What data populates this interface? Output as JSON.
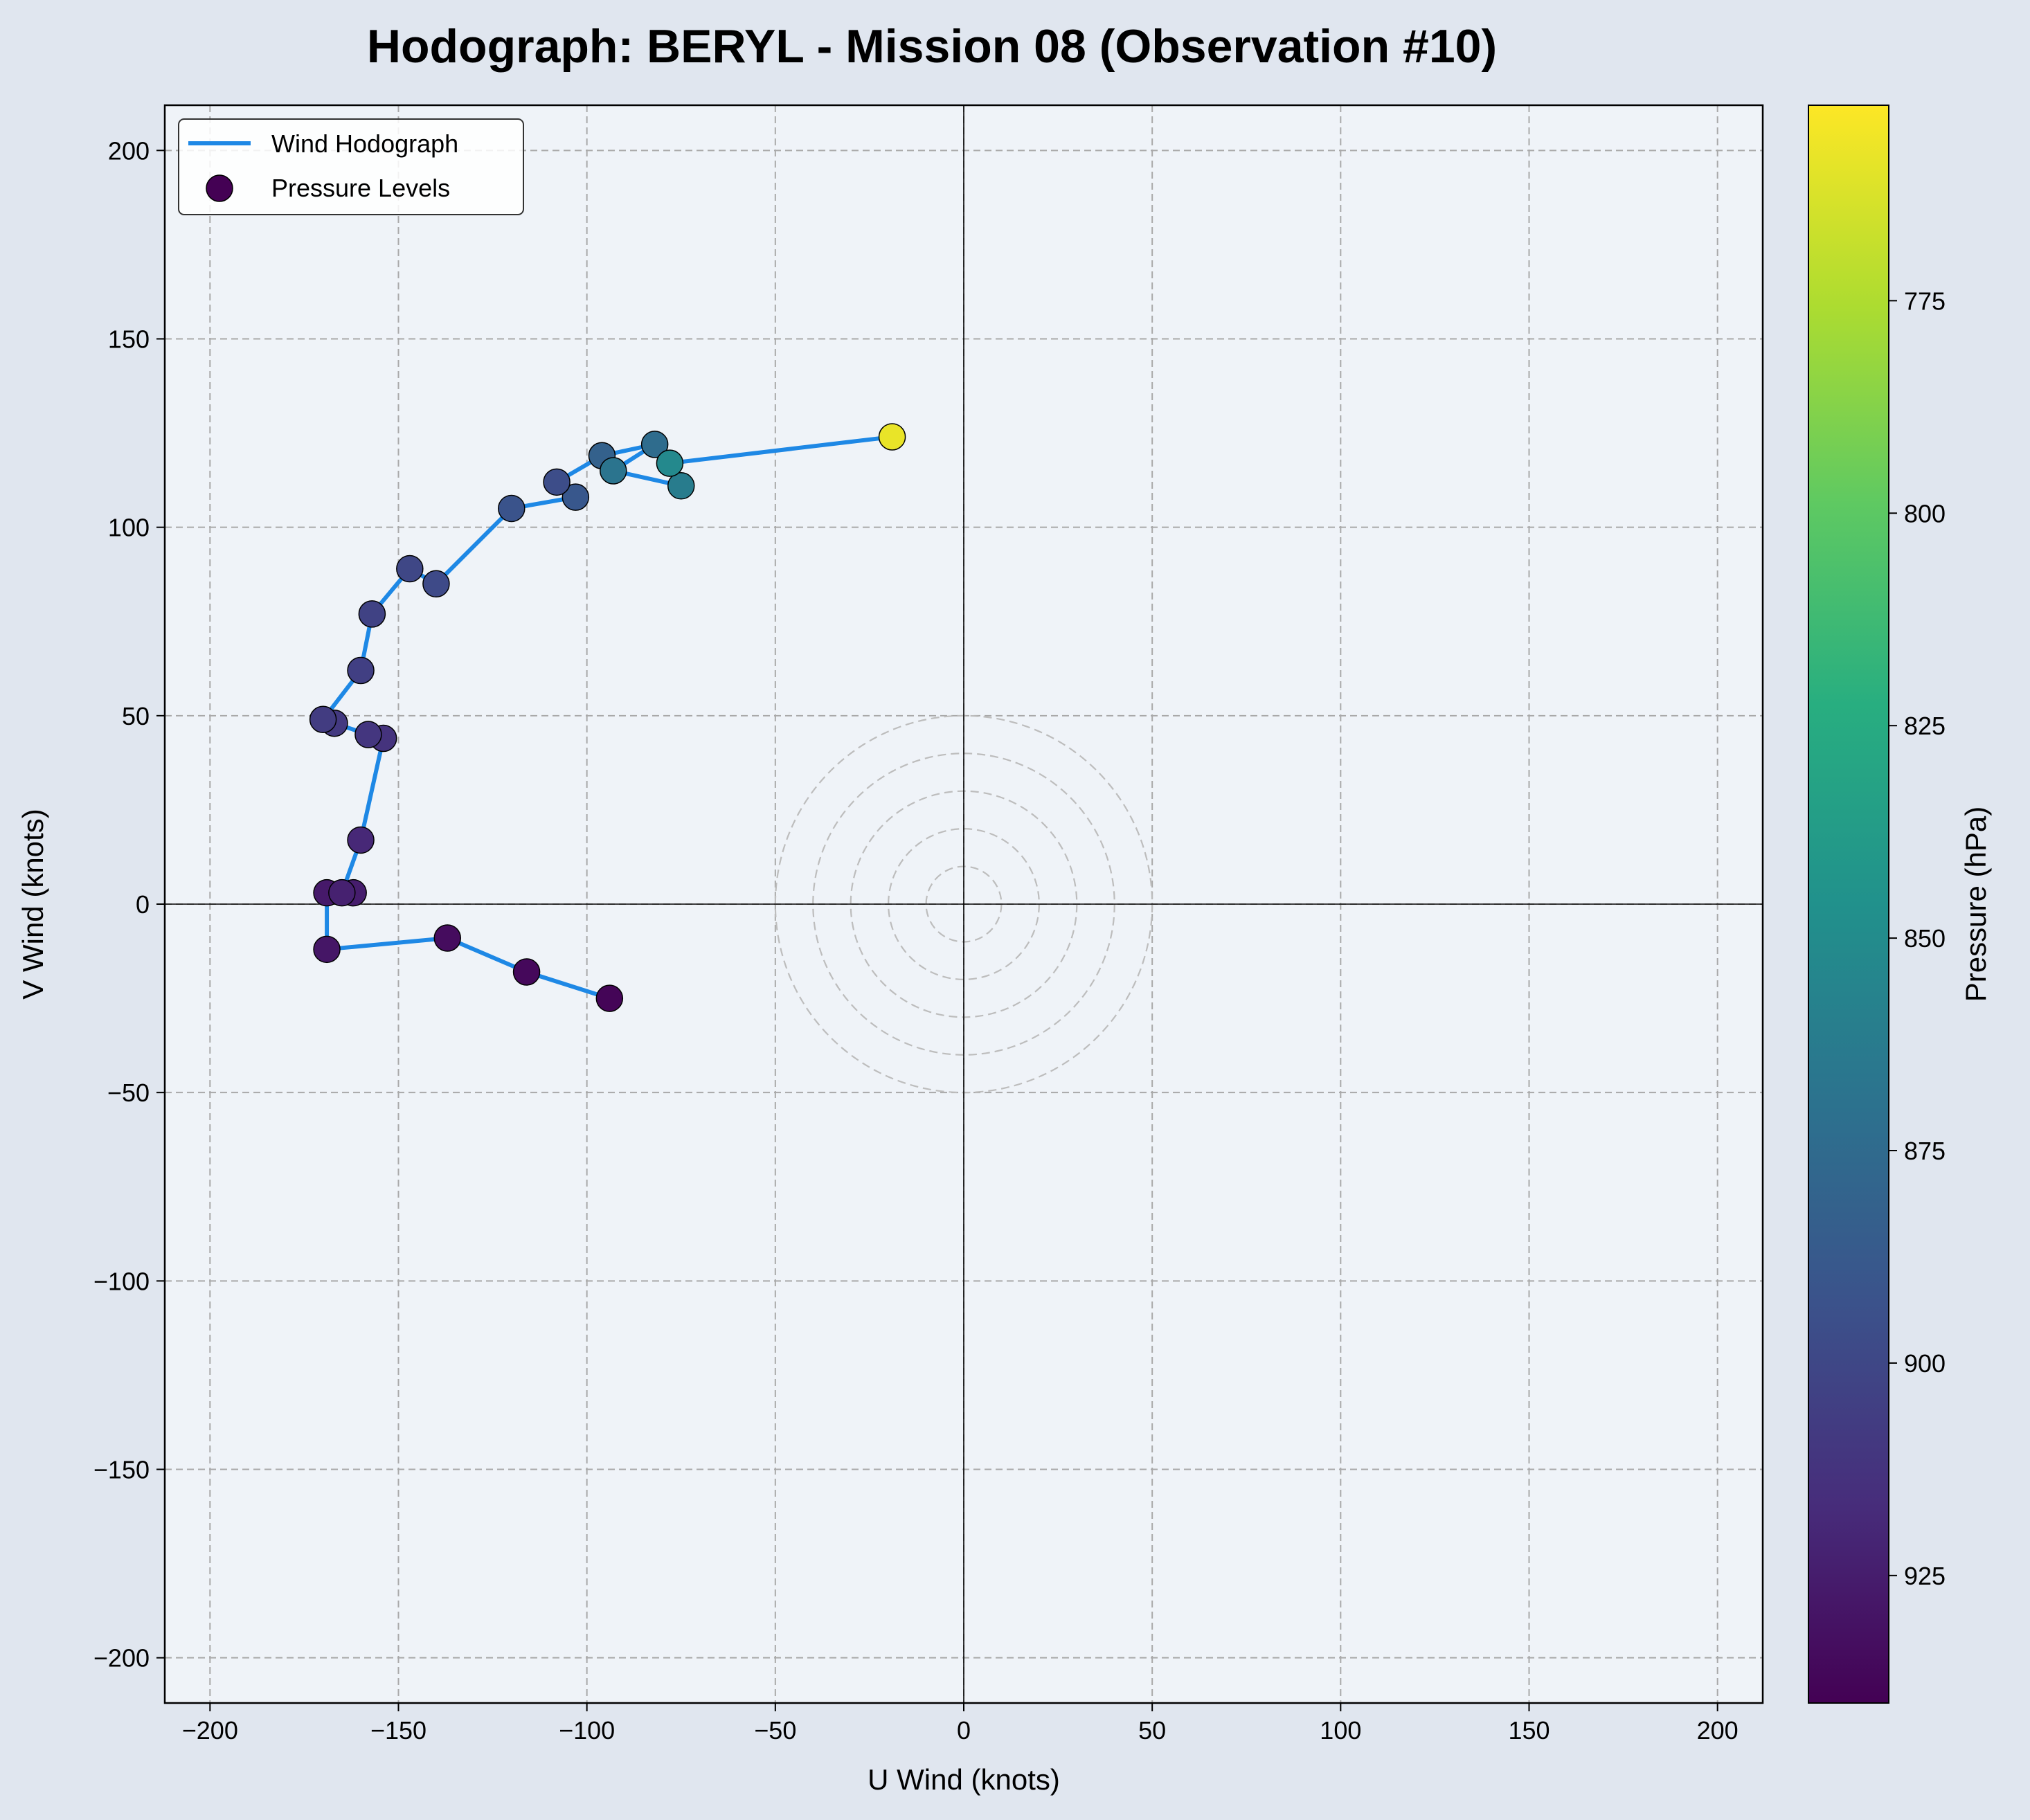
{
  "chart_data": {
    "type": "scatter",
    "title": "Hodograph: BERYL - Mission 08 (Observation #10)",
    "xlabel": "U Wind (knots)",
    "ylabel": "V Wind (knots)",
    "xlim": [
      -212,
      212
    ],
    "ylim": [
      -212,
      212
    ],
    "xticks": [
      -200,
      -150,
      -100,
      -50,
      0,
      50,
      100,
      150,
      200
    ],
    "yticks": [
      -200,
      -150,
      -100,
      -50,
      0,
      50,
      100,
      150,
      200
    ],
    "tick_labels": [
      "−200",
      "−150",
      "−100",
      "−50",
      "0",
      "50",
      "100",
      "150",
      "200"
    ],
    "grid": true,
    "reference_rings_knots": [
      10,
      20,
      30,
      40,
      50
    ],
    "legend": {
      "placement": "top-left",
      "entries": [
        "Wind Hodograph",
        "Pressure Levels"
      ]
    },
    "line_color": "#1e88e5",
    "colormap": "viridis",
    "colorbar": {
      "label": "Pressure (hPa)",
      "range": [
        940,
        752
      ],
      "ticks": [
        775,
        800,
        825,
        850,
        875,
        900,
        925
      ],
      "tick_labels": [
        "775",
        "800",
        "825",
        "850",
        "875",
        "900",
        "925"
      ]
    },
    "points": [
      {
        "u": -94,
        "v": -25,
        "p": 938
      },
      {
        "u": -116,
        "v": -18,
        "p": 936
      },
      {
        "u": -137,
        "v": -9,
        "p": 934
      },
      {
        "u": -169,
        "v": -12,
        "p": 929
      },
      {
        "u": -169,
        "v": 3,
        "p": 927
      },
      {
        "u": -162,
        "v": 3,
        "p": 925
      },
      {
        "u": -165,
        "v": 3,
        "p": 923
      },
      {
        "u": -160,
        "v": 17,
        "p": 919
      },
      {
        "u": -154,
        "v": 44,
        "p": 913
      },
      {
        "u": -158,
        "v": 45,
        "p": 911
      },
      {
        "u": -167,
        "v": 48,
        "p": 909
      },
      {
        "u": -170,
        "v": 49,
        "p": 907
      },
      {
        "u": -160,
        "v": 62,
        "p": 905
      },
      {
        "u": -157,
        "v": 77,
        "p": 903
      },
      {
        "u": -147,
        "v": 89,
        "p": 900
      },
      {
        "u": -140,
        "v": 85,
        "p": 898
      },
      {
        "u": -120,
        "v": 105,
        "p": 892
      },
      {
        "u": -103,
        "v": 108,
        "p": 889
      },
      {
        "u": -108,
        "v": 112,
        "p": 896
      },
      {
        "u": -96,
        "v": 119,
        "p": 882
      },
      {
        "u": -82,
        "v": 122,
        "p": 874
      },
      {
        "u": -93,
        "v": 115,
        "p": 868
      },
      {
        "u": -75,
        "v": 111,
        "p": 862
      },
      {
        "u": -78,
        "v": 117,
        "p": 852
      },
      {
        "u": -19,
        "v": 124,
        "p": 758
      }
    ]
  }
}
